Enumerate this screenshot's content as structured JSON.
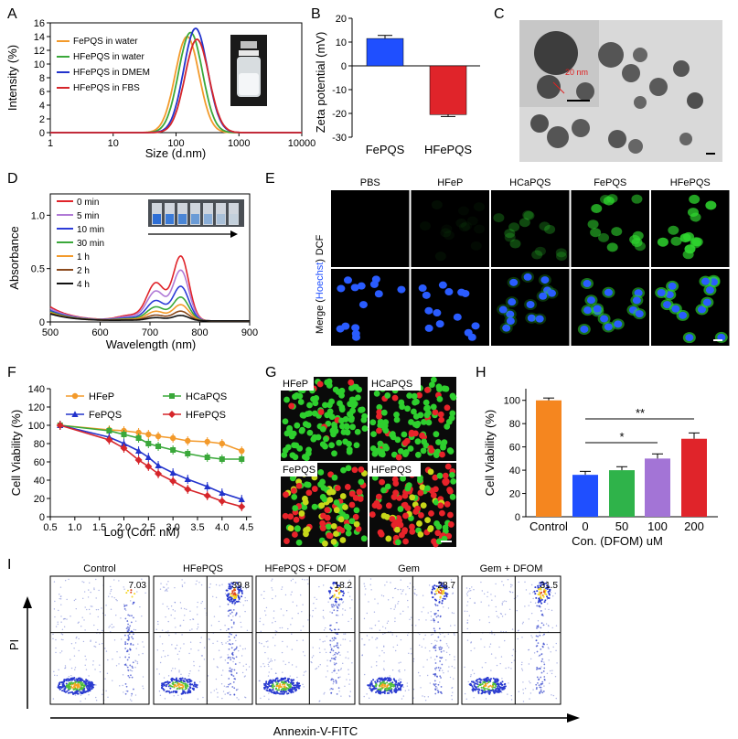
{
  "panels": {
    "A": {
      "label": "A",
      "xlabel": "Size (d.nm)",
      "ylabel": "Intensity (%)",
      "xticks": [
        "1",
        "10",
        "100",
        "1000",
        "10000"
      ],
      "yticks": [
        "0",
        "2",
        "4",
        "6",
        "8",
        "10",
        "12",
        "14",
        "16"
      ],
      "legend": [
        "FePQS in water",
        "HFePQS in water",
        "HFePQS in DMEM",
        "HFePQS in FBS"
      ],
      "colors": [
        "#f39a2b",
        "#3aa83a",
        "#2233cc",
        "#d6262b"
      ]
    },
    "B": {
      "label": "B",
      "ylabel": "Zeta potential (mV)",
      "yticks": [
        "20",
        "10",
        "0",
        "-10",
        "-20",
        "-30"
      ],
      "categories": [
        "FePQS",
        "HFePQS"
      ],
      "colors": [
        "#1f4fff",
        "#e0242a"
      ]
    },
    "C": {
      "label": "C",
      "scale_text": "20 nm"
    },
    "D": {
      "label": "D",
      "xlabel": "Wavelength (nm)",
      "ylabel": "Absorbance",
      "xticks": [
        "500",
        "600",
        "700",
        "800",
        "900"
      ],
      "yticks": [
        "0",
        "0.5",
        "1.0"
      ],
      "legend": [
        "0 min",
        "5 min",
        "10 min",
        "30 min",
        "1 h",
        "2 h",
        "4 h"
      ],
      "colors": [
        "#e0242a",
        "#b07ad6",
        "#2d3cd8",
        "#3aa83a",
        "#f39a2b",
        "#8b4a1d",
        "#111111"
      ]
    },
    "E": {
      "label": "E",
      "columns": [
        "PBS",
        "HFeP",
        "HCaPQS",
        "FePQS",
        "HFePQS"
      ],
      "row_dcf": "DCF",
      "row_merge_a": "Merge (",
      "row_merge_b": "Hoechst",
      "row_merge_c": ")"
    },
    "F": {
      "label": "F",
      "xlabel": "Log (Con. nM)",
      "ylabel": "Cell Viability (%)",
      "xticks": [
        "0.5",
        "1.0",
        "1.5",
        "2.0",
        "2.5",
        "3.0",
        "3.5",
        "4.0",
        "4.5"
      ],
      "yticks": [
        "0",
        "20",
        "40",
        "60",
        "80",
        "100",
        "120",
        "140"
      ],
      "legend": [
        "HFeP",
        "HCaPQS",
        "FePQS",
        "HFePQS"
      ],
      "colors": [
        "#f39a2b",
        "#3aa83a",
        "#2233cc",
        "#d6262b"
      ]
    },
    "G": {
      "label": "G",
      "quadrants": [
        "HFeP",
        "HCaPQS",
        "FePQS",
        "HFePQS"
      ]
    },
    "H": {
      "label": "H",
      "xlabel": "Con. (DFOM) uM",
      "ylabel": "Cell Viability (%)",
      "yticks": [
        "0",
        "20",
        "40",
        "60",
        "80",
        "100"
      ],
      "categories": [
        "Control",
        "0",
        "50",
        "100",
        "200"
      ],
      "colors": [
        "#f5861f",
        "#1f4fff",
        "#2fb34a",
        "#a374d6",
        "#e0242a"
      ],
      "sig": [
        "*",
        "**"
      ]
    },
    "I": {
      "label": "I",
      "titles": [
        "Control",
        "HFePQS",
        "HFePQS + DFOM",
        "Gem",
        "Gem + DFOM"
      ],
      "values": [
        "7.03",
        "39.8",
        "18.2",
        "28.7",
        "31.5"
      ],
      "ylabel": "PI",
      "xlabel": "Annexin-V-FITC"
    }
  },
  "chart_data": [
    {
      "panel": "A",
      "type": "line",
      "xscale": "log",
      "xlim": [
        1,
        10000
      ],
      "ylim": [
        0,
        16
      ],
      "xlabel": "Size (d.nm)",
      "ylabel": "Intensity (%)",
      "series": [
        {
          "name": "FePQS in water",
          "peak": 150,
          "height": 14.0
        },
        {
          "name": "HFePQS in water",
          "peak": 170,
          "height": 14.6
        },
        {
          "name": "HFePQS in DMEM",
          "peak": 205,
          "height": 15.2
        },
        {
          "name": "HFePQS in FBS",
          "peak": 215,
          "height": 13.6
        }
      ]
    },
    {
      "panel": "B",
      "type": "bar",
      "categories": [
        "FePQS",
        "HFePQS"
      ],
      "values": [
        11.5,
        -20.5
      ],
      "errors": [
        1.3,
        0.8
      ],
      "ylim": [
        -30,
        20
      ],
      "ylabel": "Zeta potential (mV)"
    },
    {
      "panel": "D",
      "type": "line",
      "xlim": [
        500,
        900
      ],
      "ylim": [
        0,
        1.2
      ],
      "xlabel": "Wavelength (nm)",
      "ylabel": "Absorbance",
      "series": [
        {
          "name": "0 min",
          "peak": 0.6
        },
        {
          "name": "5 min",
          "peak": 0.47
        },
        {
          "name": "10 min",
          "peak": 0.32
        },
        {
          "name": "30 min",
          "peak": 0.22
        },
        {
          "name": "1 h",
          "peak": 0.15
        },
        {
          "name": "2 h",
          "peak": 0.09
        },
        {
          "name": "4 h",
          "peak": 0.05
        }
      ]
    },
    {
      "panel": "F",
      "type": "line",
      "xlim": [
        0.5,
        4.6
      ],
      "ylim": [
        0,
        140
      ],
      "xlabel": "Log (Con. nM)",
      "ylabel": "Cell Viability (%)",
      "x": [
        0.7,
        1.7,
        2.0,
        2.3,
        2.5,
        2.7,
        3.0,
        3.3,
        3.7,
        4.0,
        4.4
      ],
      "series": [
        {
          "name": "HFeP",
          "values": [
            100,
            95,
            94,
            92,
            90,
            88,
            86,
            83,
            82,
            80,
            72
          ]
        },
        {
          "name": "HCaPQS",
          "values": [
            100,
            94,
            90,
            86,
            80,
            77,
            73,
            69,
            65,
            63,
            63
          ]
        },
        {
          "name": "FePQS",
          "values": [
            100,
            87,
            80,
            72,
            65,
            56,
            48,
            41,
            33,
            26,
            19
          ]
        },
        {
          "name": "HFePQS",
          "values": [
            100,
            84,
            75,
            62,
            55,
            47,
            39,
            30,
            23,
            17,
            11
          ]
        }
      ]
    },
    {
      "panel": "H",
      "type": "bar",
      "categories": [
        "Control",
        "0",
        "50",
        "100",
        "200"
      ],
      "values": [
        100,
        36,
        40,
        50,
        67
      ],
      "errors": [
        2,
        3,
        3,
        4,
        5
      ],
      "ylim": [
        0,
        110
      ],
      "xlabel": "Con. (DFOM) uM",
      "ylabel": "Cell Viability (%)"
    }
  ]
}
